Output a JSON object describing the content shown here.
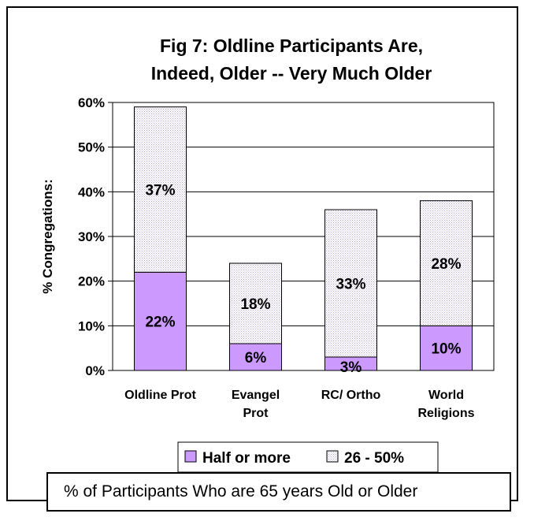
{
  "chart_data": {
    "type": "bar",
    "stacked": true,
    "title_lines": [
      "Fig 7: Oldline Participants Are,",
      "Indeed, Older -- Very Much Older"
    ],
    "ylabel": "% Congregations:",
    "xlabel": "% of Participants Who are 65 years Old or Older",
    "categories": [
      [
        "Oldline Prot"
      ],
      [
        "Evangel",
        "Prot"
      ],
      [
        "RC/ Ortho"
      ],
      [
        "World",
        "Religions"
      ]
    ],
    "series": [
      {
        "name": "Half or more",
        "values": [
          22,
          6,
          3,
          10
        ],
        "labels": [
          "22%",
          "6%",
          "3%",
          "10%"
        ],
        "color": "#cc99ff"
      },
      {
        "name": "26 - 50%",
        "values": [
          37,
          18,
          33,
          28
        ],
        "labels": [
          "37%",
          "18%",
          "33%",
          "28%"
        ],
        "color": "#e8e0f0"
      }
    ],
    "ylim": [
      0,
      60
    ],
    "yticks": [
      0,
      10,
      20,
      30,
      40,
      50,
      60
    ],
    "ytick_labels": [
      "0%",
      "10%",
      "20%",
      "30%",
      "40%",
      "50%",
      "60%"
    ],
    "grid": true,
    "legend_position": "bottom"
  }
}
